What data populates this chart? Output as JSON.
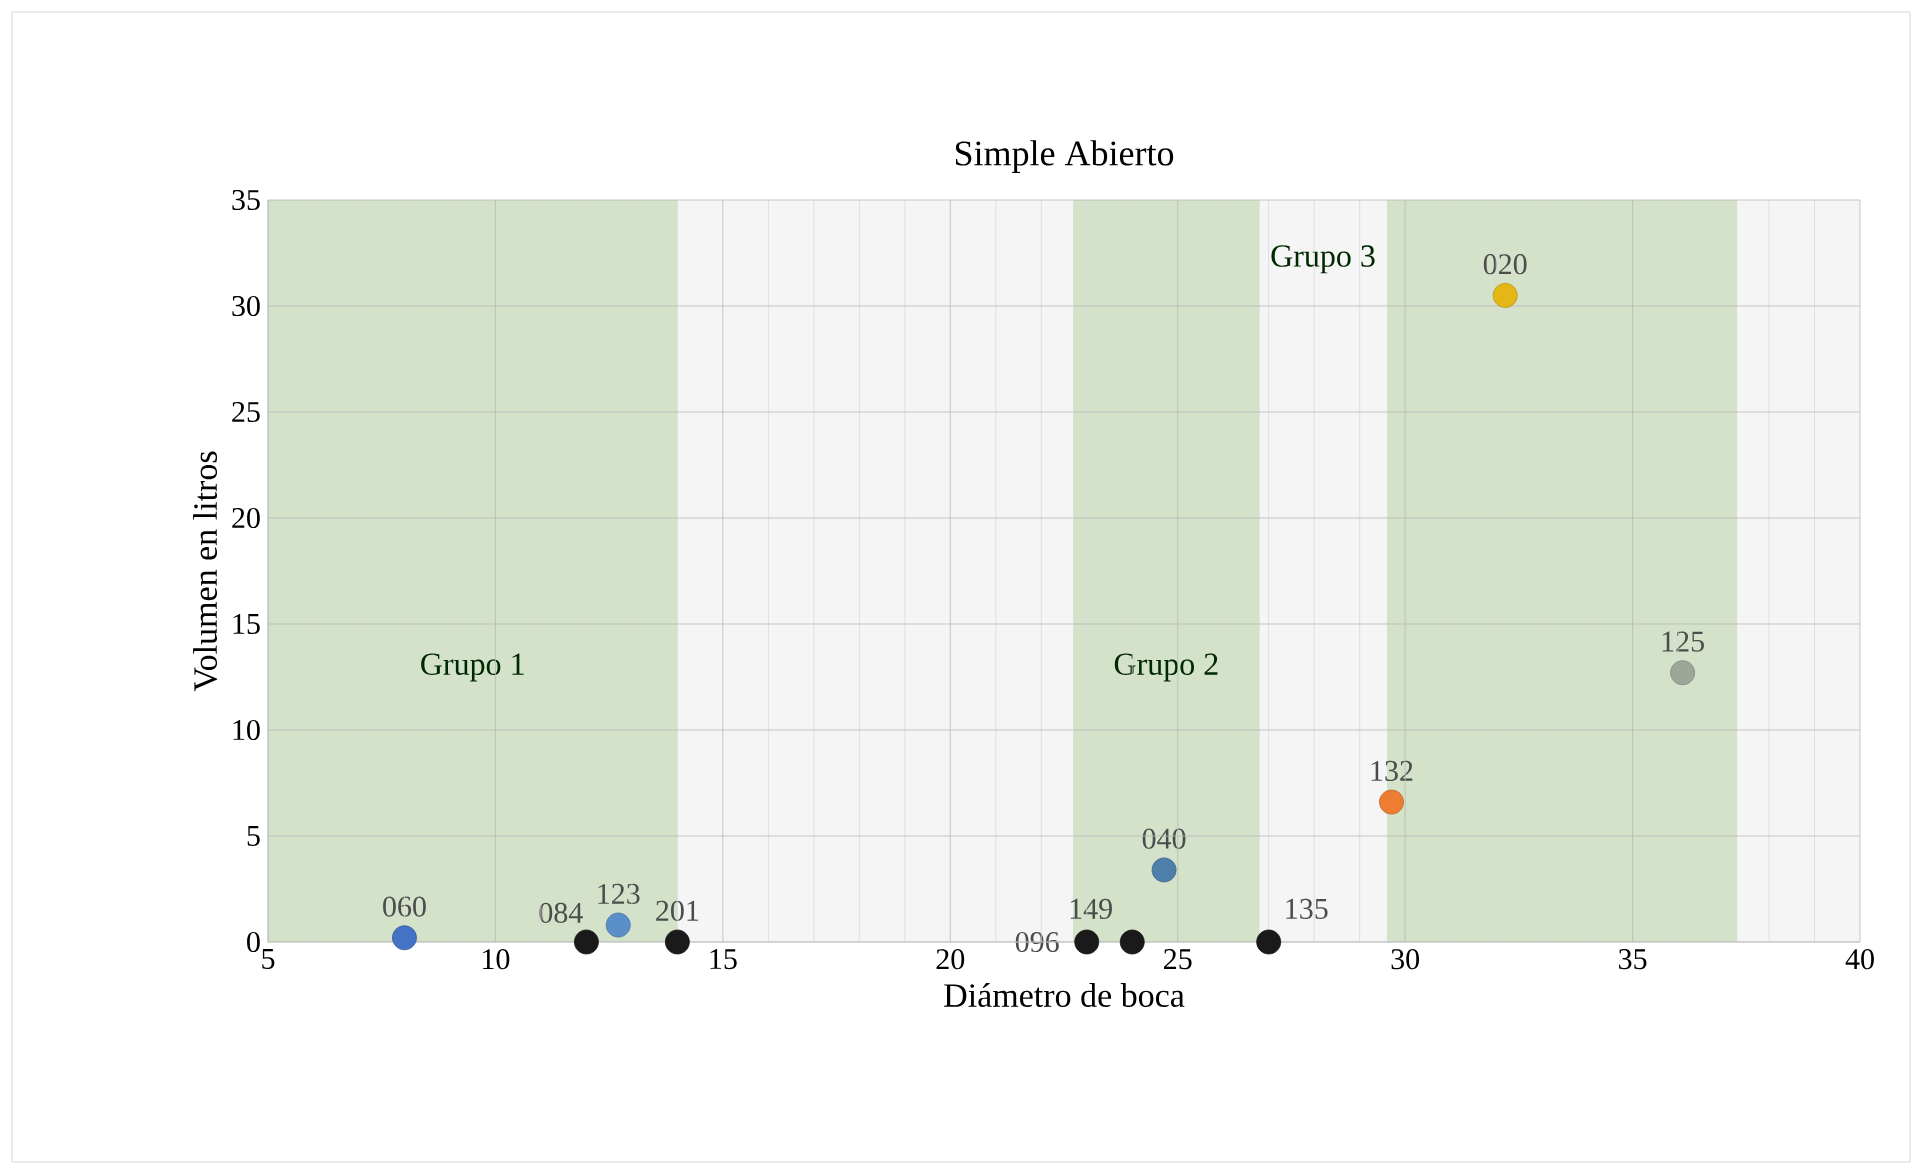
{
  "chart_data": {
    "type": "scatter",
    "title": "Simple Abierto",
    "xlabel": "Diámetro de boca",
    "ylabel": "Volumen en litros",
    "x": [
      8,
      12,
      12.7,
      14,
      23,
      24,
      24.7,
      27,
      29.7,
      32.2,
      36.1
    ],
    "values": [
      0.2,
      0,
      0.8,
      0,
      0,
      0,
      3.4,
      0,
      6.6,
      30.5,
      12.7
    ],
    "colors": [
      "#4472c4",
      "#1a1a1a",
      "#5b8fc9",
      "#1a1a1a",
      "#1a1a1a",
      "#1a1a1a",
      "#4e7fab",
      "#1a1a1a",
      "#ed7d31",
      "#e5b716",
      "#9ea69a"
    ],
    "annotations": [
      {
        "text": "060",
        "x": 8,
        "y": 0.2
      },
      {
        "text": "084",
        "x": 12,
        "y": 0
      },
      {
        "text": "123",
        "x": 12.7,
        "y": 0.8
      },
      {
        "text": "201",
        "x": 14,
        "y": 0
      },
      {
        "text": "096",
        "x": 23,
        "y": 0
      },
      {
        "text": "149",
        "x": 24,
        "y": 0
      },
      {
        "text": "040",
        "x": 24.7,
        "y": 3.4
      },
      {
        "text": "135",
        "x": 27,
        "y": 0
      },
      {
        "text": "132",
        "x": 29.7,
        "y": 6.6
      },
      {
        "text": "020",
        "x": 32.2,
        "y": 30.5
      },
      {
        "text": "125",
        "x": 36.1,
        "y": 12.7
      }
    ],
    "xlim": [
      5,
      40
    ],
    "ylim": [
      0,
      35
    ],
    "xticks": [
      5,
      10,
      15,
      20,
      25,
      30,
      35,
      40
    ],
    "yticks": [
      0,
      5,
      10,
      15,
      20,
      25,
      30,
      35
    ],
    "bands": [
      {
        "axis": "x",
        "from": 5,
        "to": 14,
        "label": "Grupo 1",
        "color": "#d3e2c9"
      },
      {
        "axis": "x",
        "from": 22.7,
        "to": 26.8,
        "label": "Grupo 2",
        "color": "#d3e2c9"
      },
      {
        "axis": "x",
        "from": 29.6,
        "to": 37.3,
        "label": "Grupo 3",
        "color": "#d3e2c9"
      }
    ],
    "grid": true,
    "marker": "circle"
  }
}
